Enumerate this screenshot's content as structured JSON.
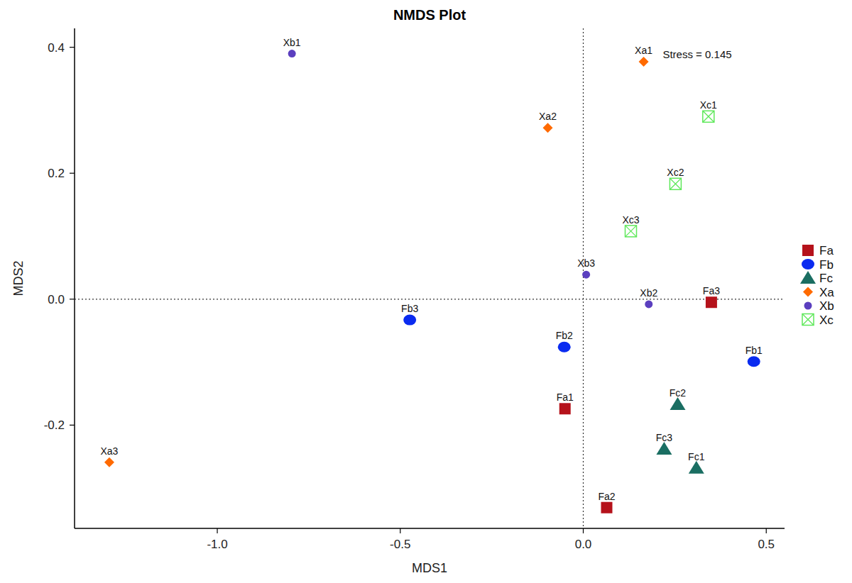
{
  "chart_data": {
    "type": "scatter",
    "title": "NMDS Plot",
    "x_label": "MDS1",
    "y_label": "MDS2",
    "annotation": "Stress = 0.145",
    "xlim": [
      -1.39,
      0.55
    ],
    "ylim": [
      -0.364,
      0.43
    ],
    "xticks": [
      {
        "value": -1.0,
        "label": "-1.0"
      },
      -0.5,
      {
        "value": 0.0,
        "label": "0.0"
      },
      0.5
    ],
    "yticks": [
      -0.2,
      {
        "value": 0.0,
        "label": "0.0"
      },
      0.2,
      0.4
    ],
    "legend": "right",
    "grid": false,
    "series": [
      {
        "name": "Fa",
        "color": "#b5121b",
        "marker": "square",
        "point_labels": [
          "Fa1",
          "Fa2",
          "Fa3"
        ],
        "x": [
          -0.05,
          0.064,
          0.35
        ],
        "y": [
          -0.174,
          -0.331,
          -0.005
        ]
      },
      {
        "name": "Fb",
        "color": "#0a2bf0",
        "marker": "circle",
        "point_labels": [
          "Fb1",
          "Fb2",
          "Fb3"
        ],
        "x": [
          0.466,
          -0.052,
          -0.474
        ],
        "y": [
          -0.099,
          -0.076,
          -0.033
        ]
      },
      {
        "name": "Fc",
        "color": "#1a6e62",
        "marker": "triangle",
        "point_labels": [
          "Fc1",
          "Fc2",
          "Fc3"
        ],
        "x": [
          0.309,
          0.258,
          0.221
        ],
        "y": [
          -0.268,
          -0.167,
          -0.238
        ]
      },
      {
        "name": "Xa",
        "color": "#ff6a00",
        "marker": "diamond",
        "point_labels": [
          "Xa1",
          "Xa2",
          "Xa3"
        ],
        "x": [
          0.165,
          -0.097,
          -1.295
        ],
        "y": [
          0.377,
          0.272,
          -0.259
        ]
      },
      {
        "name": "Xb",
        "color": "#5b3fbf",
        "marker": "circle-small",
        "point_labels": [
          "Xb1",
          "Xb2",
          "Xb3"
        ],
        "x": [
          -0.796,
          0.179,
          0.008
        ],
        "y": [
          0.39,
          -0.008,
          0.039
        ]
      },
      {
        "name": "Xc",
        "color": "#5ee85a",
        "marker": "square-x",
        "point_labels": [
          "Xc1",
          "Xc2",
          "Xc3"
        ],
        "x": [
          0.342,
          0.252,
          0.13
        ],
        "y": [
          0.29,
          0.183,
          0.108
        ]
      }
    ]
  }
}
